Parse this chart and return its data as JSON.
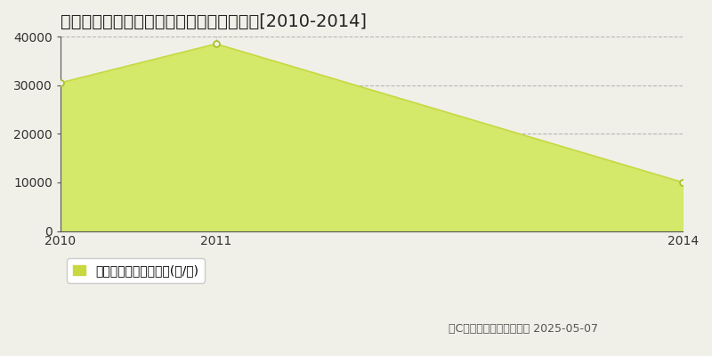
{
  "title": "広島市安佐北区あさひが丘　林地価格推移[2010-2014]",
  "years": [
    2010,
    2011,
    2014
  ],
  "values": [
    30500,
    38500,
    10000
  ],
  "line_color": "#c8d840",
  "fill_color": "#d4e86a",
  "fill_alpha": 1.0,
  "marker_facecolor": "#f0f0e8",
  "marker_edgecolor": "#a8c020",
  "marker_size": 5,
  "marker_linewidth": 1.2,
  "ylim": [
    0,
    40000
  ],
  "xlim": [
    2010,
    2014
  ],
  "yticks": [
    0,
    10000,
    20000,
    30000,
    40000
  ],
  "xticks": [
    2010,
    2011,
    2014
  ],
  "hgrid_color": "#aaaaaa",
  "hgrid_style": "--",
  "hgrid_alpha": 0.8,
  "hgrid_linewidth": 0.8,
  "vline_x": 2011,
  "vline_color": "#aaaaaa",
  "vline_style": "--",
  "vline_linewidth": 0.8,
  "background_color": "#f0f0e8",
  "plot_bg_color": "#f0f0e8",
  "spine_color": "#555555",
  "legend_label": "林地価格　平均嵪単価(円/嵪)",
  "legend_marker_color": "#c8d840",
  "copyright_text": "（C）土地価格ドットコム 2025-05-07",
  "title_fontsize": 14,
  "tick_fontsize": 10,
  "legend_fontsize": 10,
  "copyright_fontsize": 9
}
